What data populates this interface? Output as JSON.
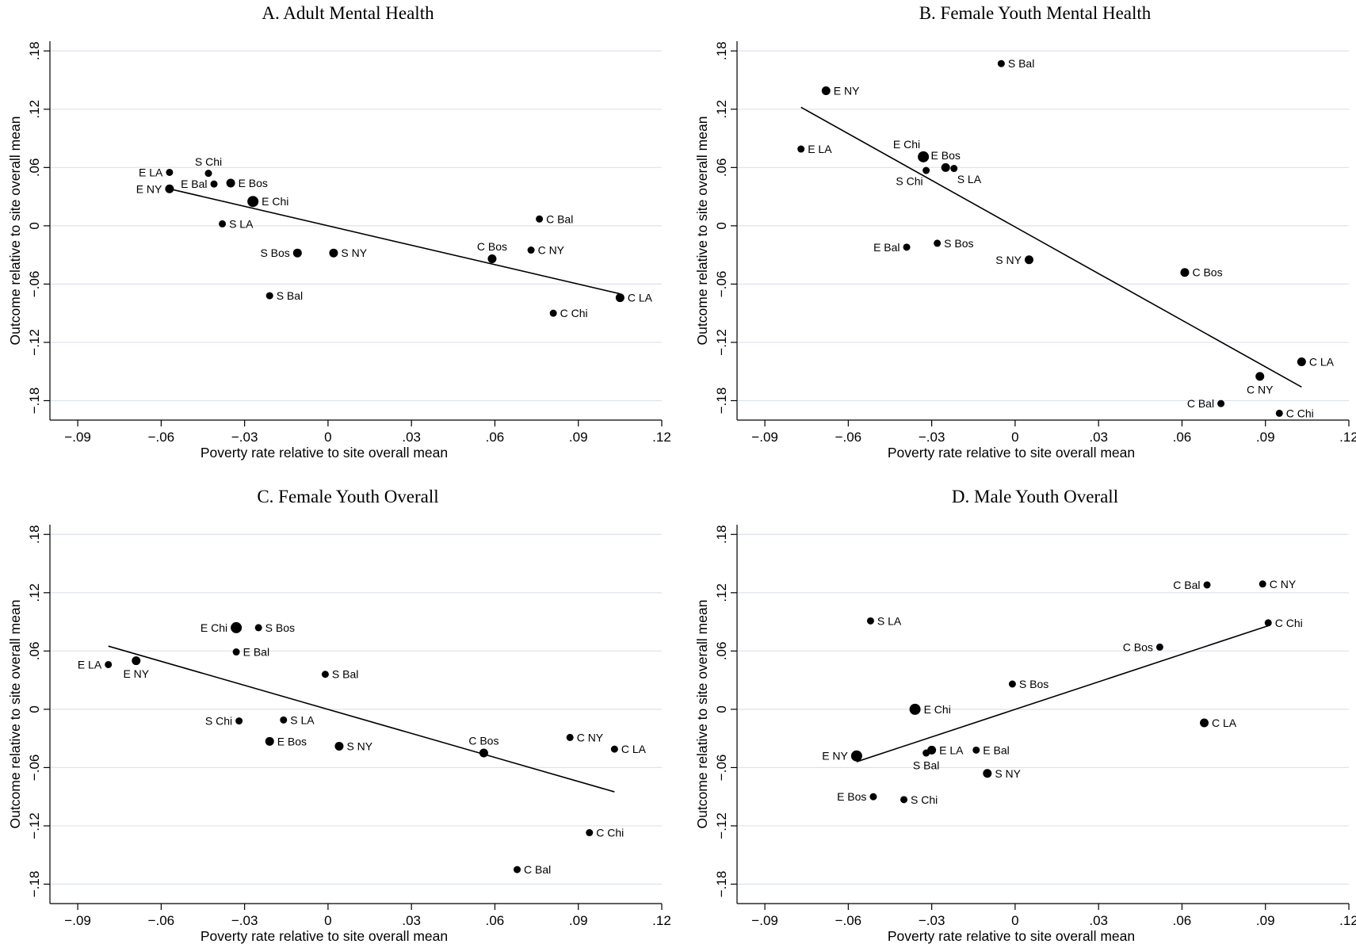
{
  "chart_data": [
    {
      "type": "scatter",
      "title": "A. Adult Mental Health",
      "xlabel": "Poverty rate relative to site overall mean",
      "ylabel": "Outcome relative to site overall mean",
      "xlim": [
        -0.1,
        0.12
      ],
      "ylim": [
        -0.2,
        0.19
      ],
      "xticks": [
        -0.09,
        -0.06,
        -0.03,
        0,
        0.03,
        0.06,
        0.09,
        0.12
      ],
      "xtick_labels": [
        "-.09",
        "-.06",
        "-.03",
        "0",
        ".03",
        ".06",
        ".09",
        ".12"
      ],
      "yticks": [
        -0.18,
        -0.12,
        -0.06,
        0,
        0.06,
        0.12,
        0.18
      ],
      "ytick_labels": [
        "-.18",
        "-.12",
        "-.06",
        "0",
        ".06",
        ".12",
        ".18"
      ],
      "grid": true,
      "fit_line": {
        "x": [
          -0.057,
          0.105
        ],
        "y": [
          0.038,
          -0.07
        ]
      },
      "points": [
        {
          "label": "E LA",
          "x": -0.057,
          "y": 0.055,
          "size": "small",
          "label_side": "left"
        },
        {
          "label": "S Chi",
          "x": -0.043,
          "y": 0.054,
          "size": "small",
          "label_side": "above"
        },
        {
          "label": "E NY",
          "x": -0.057,
          "y": 0.038,
          "size": "medium",
          "label_side": "left"
        },
        {
          "label": "E Bal",
          "x": -0.041,
          "y": 0.043,
          "size": "small",
          "label_side": "left"
        },
        {
          "label": "E Bos",
          "x": -0.035,
          "y": 0.044,
          "size": "medium",
          "label_side": "right"
        },
        {
          "label": "E Chi",
          "x": -0.027,
          "y": 0.025,
          "size": "large",
          "label_side": "right"
        },
        {
          "label": "S LA",
          "x": -0.038,
          "y": 0.002,
          "size": "small",
          "label_side": "right"
        },
        {
          "label": "S Bos",
          "x": -0.011,
          "y": -0.028,
          "size": "medium",
          "label_side": "left"
        },
        {
          "label": "S NY",
          "x": 0.002,
          "y": -0.028,
          "size": "medium",
          "label_side": "right"
        },
        {
          "label": "S Bal",
          "x": -0.021,
          "y": -0.072,
          "size": "small",
          "label_side": "right"
        },
        {
          "label": "C Bal",
          "x": 0.076,
          "y": 0.007,
          "size": "small",
          "label_side": "right"
        },
        {
          "label": "C Bos",
          "x": 0.059,
          "y": -0.034,
          "size": "medium",
          "label_side": "above"
        },
        {
          "label": "C NY",
          "x": 0.073,
          "y": -0.025,
          "size": "small",
          "label_side": "right"
        },
        {
          "label": "C Chi",
          "x": 0.081,
          "y": -0.09,
          "size": "small",
          "label_side": "right"
        },
        {
          "label": "C LA",
          "x": 0.105,
          "y": -0.074,
          "size": "medium",
          "label_side": "right"
        }
      ]
    },
    {
      "type": "scatter",
      "title": "B. Female Youth Mental Health",
      "xlabel": "Poverty rate relative to site overall mean",
      "ylabel": "Outcome relative to site overall mean",
      "xlim": [
        -0.1,
        0.12
      ],
      "ylim": [
        -0.2,
        0.19
      ],
      "xticks": [
        -0.09,
        -0.06,
        -0.03,
        0,
        0.03,
        0.06,
        0.09,
        0.12
      ],
      "xtick_labels": [
        "-.09",
        "-.06",
        "-.03",
        "0",
        ".03",
        ".06",
        ".09",
        ".12"
      ],
      "yticks": [
        -0.18,
        -0.12,
        -0.06,
        0,
        0.06,
        0.12,
        0.18
      ],
      "ytick_labels": [
        "-.18",
        "-.12",
        "-.06",
        "0",
        ".06",
        ".12",
        ".18"
      ],
      "grid": true,
      "fit_line": {
        "x": [
          -0.077,
          0.103
        ],
        "y": [
          0.122,
          -0.166
        ]
      },
      "points": [
        {
          "label": "S Bal",
          "x": -0.005,
          "y": 0.167,
          "size": "small",
          "label_side": "right"
        },
        {
          "label": "E NY",
          "x": -0.068,
          "y": 0.139,
          "size": "medium",
          "label_side": "right"
        },
        {
          "label": "E LA",
          "x": -0.077,
          "y": 0.079,
          "size": "small",
          "label_side": "right"
        },
        {
          "label": "E Chi",
          "x": -0.033,
          "y": 0.071,
          "size": "large",
          "label_side": "above-left"
        },
        {
          "label": "E Bos",
          "x": -0.025,
          "y": 0.06,
          "size": "medium",
          "label_side": "above"
        },
        {
          "label": "S Chi",
          "x": -0.032,
          "y": 0.057,
          "size": "small",
          "label_side": "below-left"
        },
        {
          "label": "S LA",
          "x": -0.022,
          "y": 0.059,
          "size": "small",
          "label_side": "below-right"
        },
        {
          "label": "S Bos",
          "x": -0.028,
          "y": -0.018,
          "size": "small",
          "label_side": "right"
        },
        {
          "label": "E Bal",
          "x": -0.039,
          "y": -0.022,
          "size": "small",
          "label_side": "left"
        },
        {
          "label": "S NY",
          "x": 0.005,
          "y": -0.035,
          "size": "medium",
          "label_side": "left"
        },
        {
          "label": "C Bos",
          "x": 0.061,
          "y": -0.048,
          "size": "medium",
          "label_side": "right"
        },
        {
          "label": "C LA",
          "x": 0.103,
          "y": -0.14,
          "size": "medium",
          "label_side": "right"
        },
        {
          "label": "C NY",
          "x": 0.088,
          "y": -0.155,
          "size": "medium",
          "label_side": "below"
        },
        {
          "label": "C Bal",
          "x": 0.074,
          "y": -0.183,
          "size": "small",
          "label_side": "left"
        },
        {
          "label": "C Chi",
          "x": 0.095,
          "y": -0.193,
          "size": "small",
          "label_side": "right"
        }
      ]
    },
    {
      "type": "scatter",
      "title": "C. Female Youth Overall",
      "xlabel": "Poverty rate relative to site overall mean",
      "ylabel": "Outcome relative to site overall mean",
      "xlim": [
        -0.1,
        0.12
      ],
      "ylim": [
        -0.2,
        0.19
      ],
      "xticks": [
        -0.09,
        -0.06,
        -0.03,
        0,
        0.03,
        0.06,
        0.09,
        0.12
      ],
      "xtick_labels": [
        "-.09",
        "-.06",
        "-.03",
        "0",
        ".03",
        ".06",
        ".09",
        ".12"
      ],
      "yticks": [
        -0.18,
        -0.12,
        -0.06,
        0,
        0.06,
        0.12,
        0.18
      ],
      "ytick_labels": [
        "-.18",
        "-.12",
        "-.06",
        "0",
        ".06",
        ".12",
        ".18"
      ],
      "grid": true,
      "fit_line": {
        "x": [
          -0.079,
          0.103
        ],
        "y": [
          0.065,
          -0.085
        ]
      },
      "points": [
        {
          "label": "E Chi",
          "x": -0.033,
          "y": 0.084,
          "size": "large",
          "label_side": "left"
        },
        {
          "label": "S Bos",
          "x": -0.025,
          "y": 0.084,
          "size": "small",
          "label_side": "right"
        },
        {
          "label": "E Bal",
          "x": -0.033,
          "y": 0.059,
          "size": "small",
          "label_side": "right"
        },
        {
          "label": "E LA",
          "x": -0.079,
          "y": 0.046,
          "size": "small",
          "label_side": "left"
        },
        {
          "label": "E NY",
          "x": -0.069,
          "y": 0.05,
          "size": "medium",
          "label_side": "below"
        },
        {
          "label": "S Bal",
          "x": -0.001,
          "y": 0.036,
          "size": "small",
          "label_side": "right"
        },
        {
          "label": "S Chi",
          "x": -0.032,
          "y": -0.012,
          "size": "small",
          "label_side": "left"
        },
        {
          "label": "S LA",
          "x": -0.016,
          "y": -0.011,
          "size": "small",
          "label_side": "right"
        },
        {
          "label": "E Bos",
          "x": -0.021,
          "y": -0.033,
          "size": "medium",
          "label_side": "right"
        },
        {
          "label": "S NY",
          "x": 0.004,
          "y": -0.038,
          "size": "medium",
          "label_side": "right"
        },
        {
          "label": "C Bos",
          "x": 0.056,
          "y": -0.045,
          "size": "medium",
          "label_side": "above"
        },
        {
          "label": "C NY",
          "x": 0.087,
          "y": -0.029,
          "size": "small",
          "label_side": "right"
        },
        {
          "label": "C LA",
          "x": 0.103,
          "y": -0.041,
          "size": "small",
          "label_side": "right"
        },
        {
          "label": "C Chi",
          "x": 0.094,
          "y": -0.127,
          "size": "small",
          "label_side": "right"
        },
        {
          "label": "C Bal",
          "x": 0.068,
          "y": -0.165,
          "size": "small",
          "label_side": "right"
        }
      ]
    },
    {
      "type": "scatter",
      "title": "D. Male Youth Overall",
      "xlabel": "Poverty rate relative to site overall mean",
      "ylabel": "Outcome relative to site overall mean",
      "xlim": [
        -0.1,
        0.12
      ],
      "ylim": [
        -0.2,
        0.19
      ],
      "xticks": [
        -0.09,
        -0.06,
        -0.03,
        0,
        0.03,
        0.06,
        0.09,
        0.12
      ],
      "xtick_labels": [
        "-.09",
        "-.06",
        "-.03",
        "0",
        ".03",
        ".06",
        ".09",
        ".12"
      ],
      "yticks": [
        -0.18,
        -0.12,
        -0.06,
        0,
        0.06,
        0.12,
        0.18
      ],
      "ytick_labels": [
        "-.18",
        "-.12",
        "-.06",
        "0",
        ".06",
        ".12",
        ".18"
      ],
      "grid": true,
      "fit_line": {
        "x": [
          -0.057,
          0.091
        ],
        "y": [
          -0.054,
          0.086
        ]
      },
      "points": [
        {
          "label": "C Bal",
          "x": 0.069,
          "y": 0.128,
          "size": "small",
          "label_side": "left"
        },
        {
          "label": "C NY",
          "x": 0.089,
          "y": 0.129,
          "size": "small",
          "label_side": "right"
        },
        {
          "label": "S LA",
          "x": -0.052,
          "y": 0.091,
          "size": "small",
          "label_side": "right"
        },
        {
          "label": "C Chi",
          "x": 0.091,
          "y": 0.089,
          "size": "small",
          "label_side": "right"
        },
        {
          "label": "C Bos",
          "x": 0.052,
          "y": 0.064,
          "size": "small",
          "label_side": "left"
        },
        {
          "label": "S Bos",
          "x": -0.001,
          "y": 0.026,
          "size": "small",
          "label_side": "right"
        },
        {
          "label": "E Chi",
          "x": -0.036,
          "y": 0.0,
          "size": "large",
          "label_side": "right"
        },
        {
          "label": "C LA",
          "x": 0.068,
          "y": -0.014,
          "size": "medium",
          "label_side": "right"
        },
        {
          "label": "E LA",
          "x": -0.03,
          "y": -0.042,
          "size": "medium",
          "label_side": "right"
        },
        {
          "label": "E Bal",
          "x": -0.014,
          "y": -0.042,
          "size": "small",
          "label_side": "right"
        },
        {
          "label": "E NY",
          "x": -0.057,
          "y": -0.048,
          "size": "large",
          "label_side": "left"
        },
        {
          "label": "S Bal",
          "x": -0.032,
          "y": -0.045,
          "size": "small",
          "label_side": "below"
        },
        {
          "label": "S NY",
          "x": -0.01,
          "y": -0.066,
          "size": "medium",
          "label_side": "right"
        },
        {
          "label": "E Bos",
          "x": -0.051,
          "y": -0.09,
          "size": "small",
          "label_side": "left"
        },
        {
          "label": "S Chi",
          "x": -0.04,
          "y": -0.093,
          "size": "small",
          "label_side": "right"
        }
      ]
    }
  ]
}
